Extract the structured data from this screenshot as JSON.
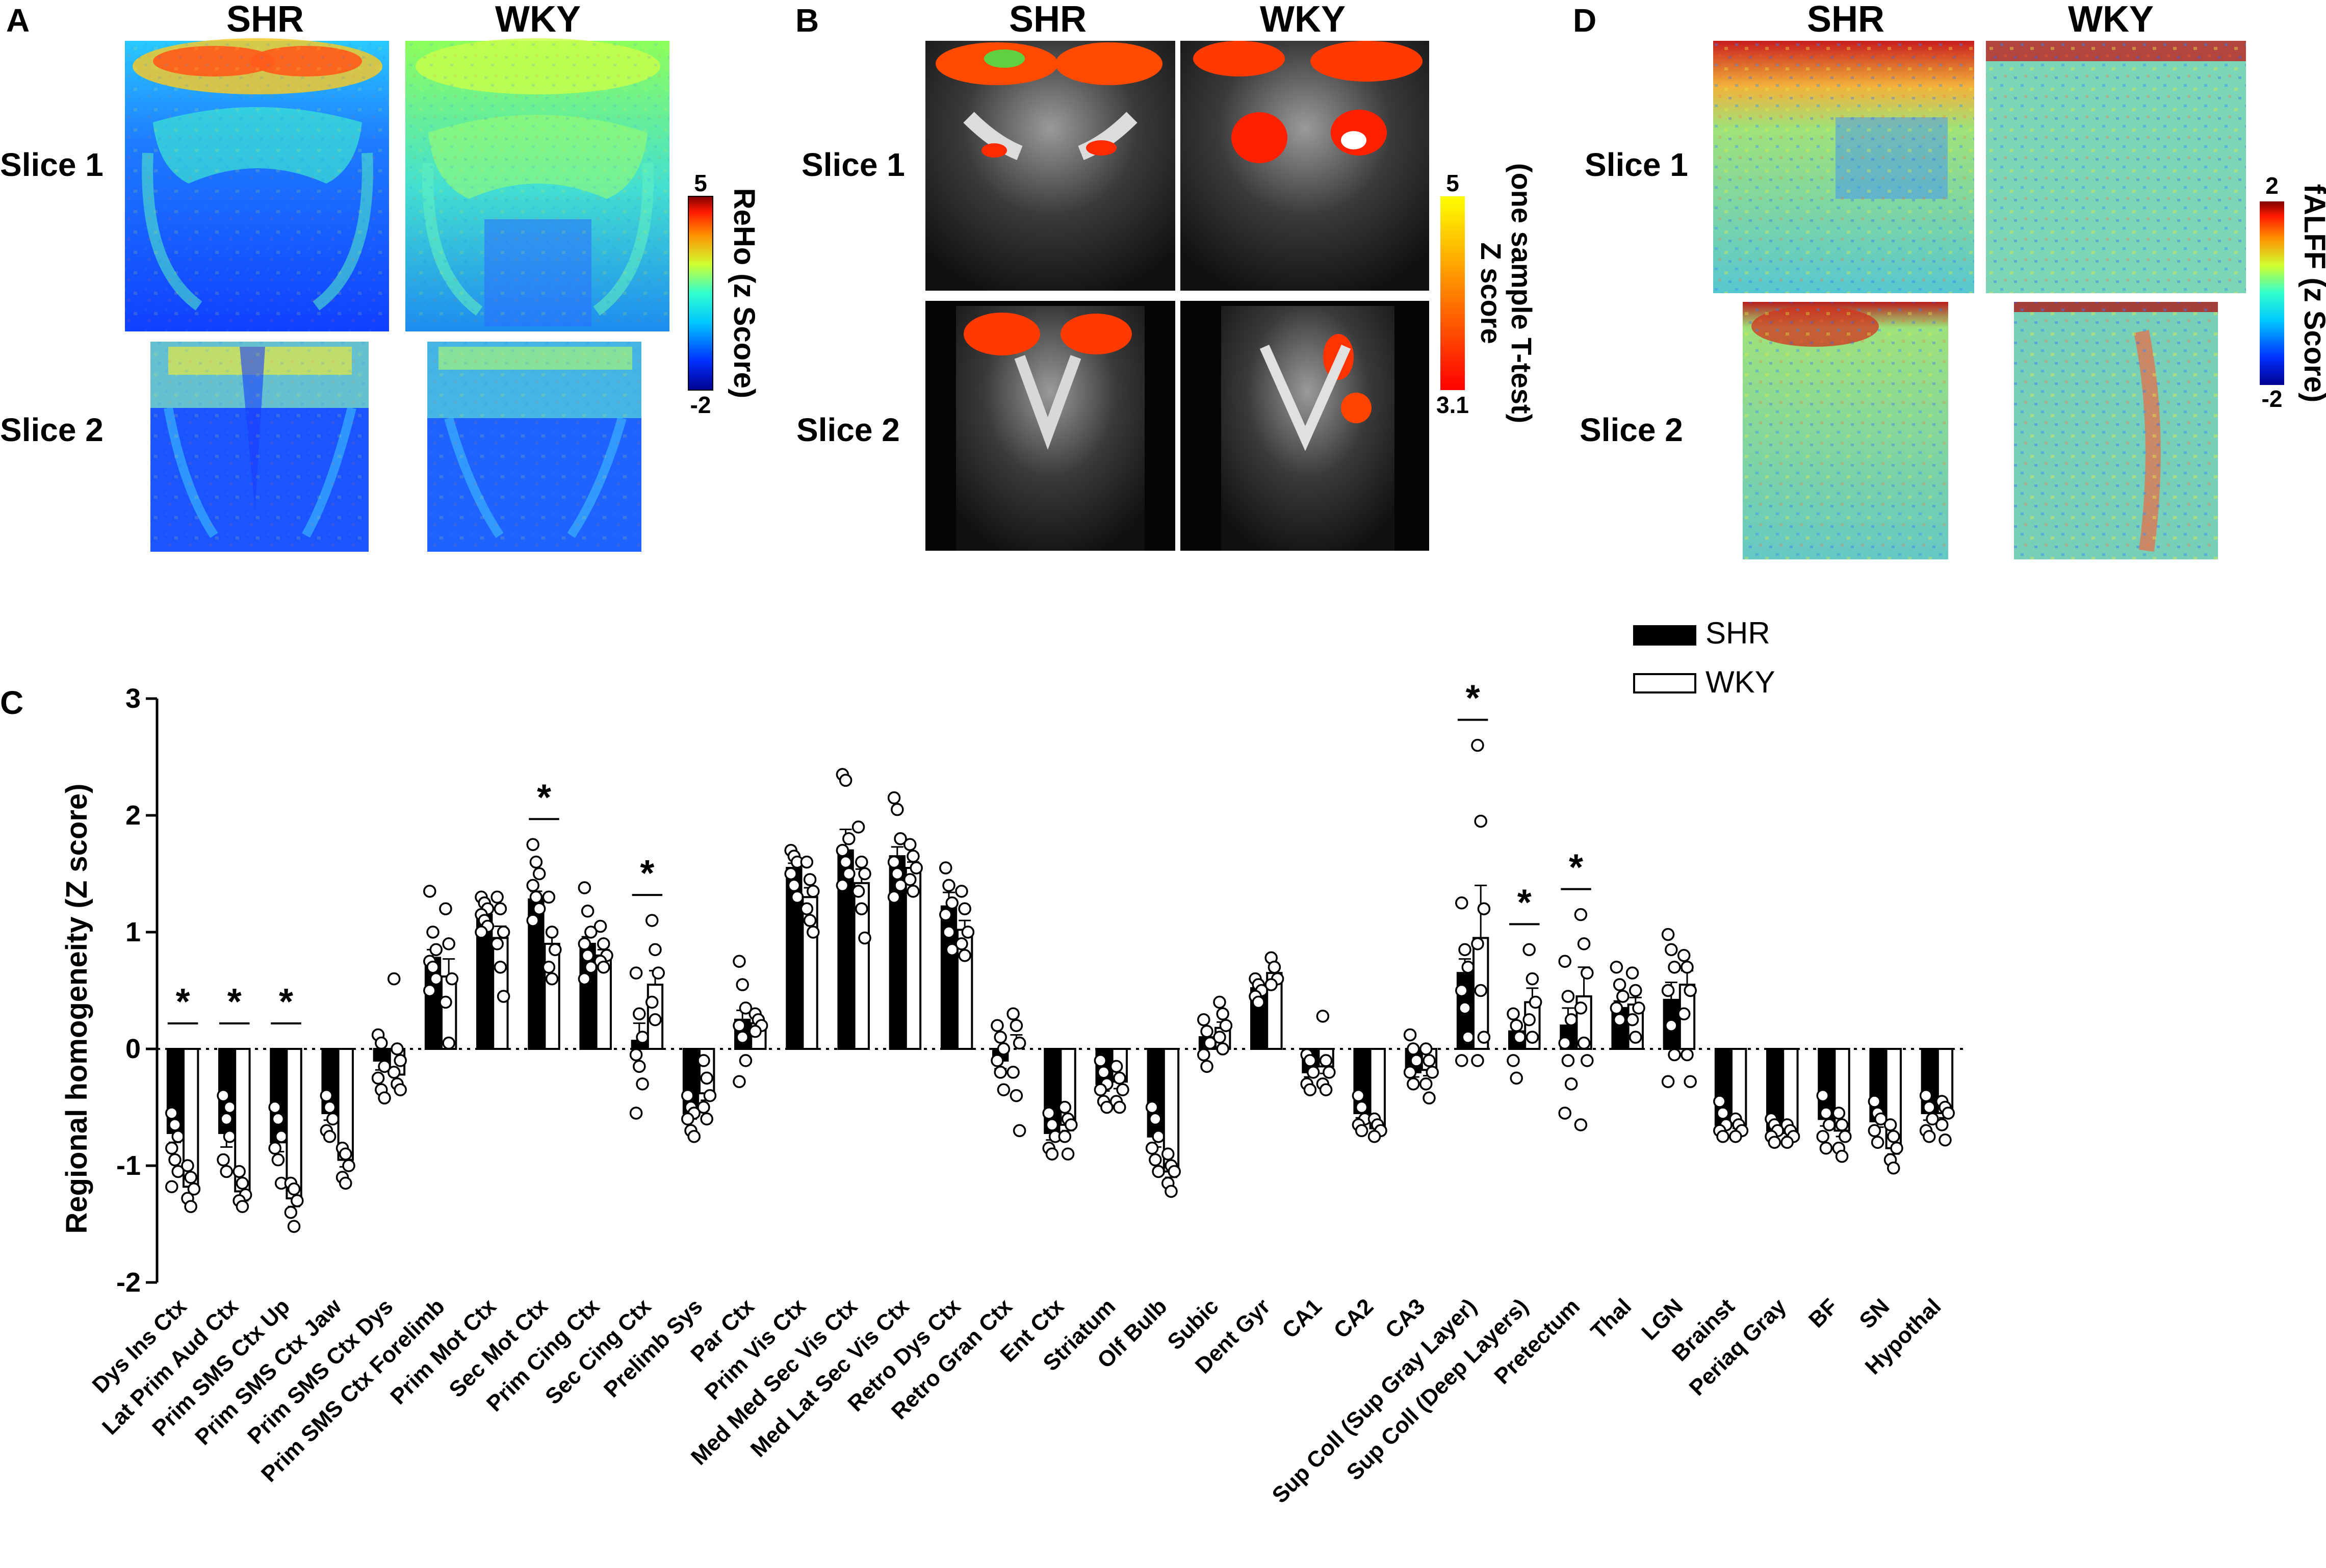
{
  "panels": {
    "A": {
      "letter": "A",
      "col1": "SHR",
      "col2": "WKY",
      "row1": "Slice 1",
      "row2": "Slice 2",
      "colorbar": {
        "title": "ReHo (z Score)",
        "max": "5",
        "min": "-2"
      }
    },
    "B": {
      "letter": "B",
      "col1": "SHR",
      "col2": "WKY",
      "row1": "Slice 1",
      "row2": "Slice 2",
      "colorbar": {
        "title_line1": "Z score",
        "title_line2": "(one sample T-test)",
        "max": "5",
        "min": "3.1"
      }
    },
    "D": {
      "letter": "D",
      "col1": "SHR",
      "col2": "WKY",
      "row1": "Slice 1",
      "row2": "Slice 2",
      "colorbar": {
        "title": "fALFF (z Score)",
        "max": "2",
        "min": "-2"
      }
    },
    "C": {
      "letter": "C"
    }
  },
  "colors": {
    "shr": "#000000",
    "wky": "#ffffff",
    "axis": "#000000"
  },
  "chart_data": {
    "type": "bar",
    "title": "",
    "xlabel": "",
    "ylabel": "Regional homogeneity (Z score)",
    "ylim": [
      -2,
      3
    ],
    "yticks": [
      "-2",
      "-1",
      "0",
      "1",
      "2",
      "3"
    ],
    "legend": [
      {
        "name": "SHR",
        "fill": "#000000"
      },
      {
        "name": "WKY",
        "fill": "#ffffff"
      }
    ],
    "significance_marker": "*",
    "categories": [
      "Dys Ins Ctx",
      "Lat Prim Aud Ctx",
      "Prim SMS Ctx Up",
      "Prim SMS Ctx Jaw",
      "Prim SMS Ctx Dys",
      "Prim SMS Ctx Forelimb",
      "Prim Mot Ctx",
      "Sec Mot Ctx",
      "Prim Cing Ctx",
      "Sec Cing Ctx",
      "Prelimb Sys",
      "Par Ctx",
      "Prim Vis Ctx",
      "Med Med Sec Vis Ctx",
      "Med Lat Sec Vis Ctx",
      "Retro Dys Ctx",
      "Retro Gran Ctx",
      "Ent Ctx",
      "Striatum",
      "Olf Bulb",
      "Subic",
      "Dent Gyr",
      "CA1",
      "CA2",
      "CA3",
      "Sup Coll (Sup Gray Layer)",
      "Sup Coll (Deep Layers)",
      "Pretectum",
      "Thal",
      "LGN",
      "Brainst",
      "Periaq Gray",
      "BF",
      "SN",
      "Hypothal"
    ],
    "series": [
      {
        "name": "SHR",
        "values": [
          -0.72,
          -0.72,
          -0.8,
          -0.55,
          -0.1,
          0.78,
          1.15,
          1.28,
          0.9,
          0.07,
          -0.55,
          0.25,
          1.55,
          1.7,
          1.65,
          1.22,
          -0.1,
          -0.72,
          -0.3,
          -0.75,
          0.1,
          0.52,
          -0.2,
          -0.55,
          -0.2,
          0.65,
          0.15,
          0.2,
          0.35,
          0.42,
          -0.65,
          -0.7,
          -0.6,
          -0.62,
          -0.55
        ],
        "errors": [
          0.08,
          0.12,
          0.08,
          0.06,
          0.08,
          0.07,
          0.04,
          0.07,
          0.06,
          0.15,
          0.05,
          0.08,
          0.04,
          0.18,
          0.08,
          0.12,
          0.07,
          0.06,
          0.06,
          0.09,
          0.06,
          0.03,
          0.04,
          0.04,
          0.04,
          0.12,
          0.07,
          0.15,
          0.06,
          0.15,
          0.04,
          0.03,
          0.06,
          0.05,
          0.06
        ],
        "points": [
          [
            -0.55,
            -0.65,
            -0.75,
            -0.85,
            -0.95,
            -1.05,
            -1.18
          ],
          [
            -0.4,
            -0.6,
            -0.75,
            -0.95,
            -1.05,
            -0.5
          ],
          [
            -0.5,
            -0.6,
            -0.75,
            -0.85,
            -0.95,
            -1.15
          ],
          [
            -0.4,
            -0.5,
            -0.6,
            -0.7,
            -0.75
          ],
          [
            0.12,
            0.05,
            -0.15,
            -0.25,
            -0.35,
            -0.42
          ],
          [
            1.35,
            1.0,
            0.85,
            0.75,
            0.7,
            0.6,
            0.5
          ],
          [
            1.3,
            1.25,
            1.2,
            1.15,
            1.1,
            1.05,
            1.0
          ],
          [
            1.75,
            1.6,
            1.5,
            1.4,
            1.3,
            1.2,
            1.1
          ],
          [
            1.38,
            1.18,
            1.0,
            0.9,
            0.8,
            0.7,
            0.6
          ],
          [
            0.65,
            0.3,
            0.1,
            -0.05,
            -0.15,
            -0.3,
            -0.55
          ],
          [
            -0.4,
            -0.5,
            -0.55,
            -0.6,
            -0.7,
            -0.75
          ],
          [
            0.75,
            0.55,
            0.35,
            0.2,
            0.1,
            -0.1,
            -0.28
          ],
          [
            1.7,
            1.65,
            1.6,
            1.5,
            1.4,
            1.3
          ],
          [
            2.35,
            2.3,
            1.8,
            1.7,
            1.6,
            1.5,
            1.4
          ],
          [
            2.15,
            2.05,
            1.8,
            1.6,
            1.5,
            1.4,
            1.3
          ],
          [
            1.55,
            1.4,
            1.25,
            1.15,
            1.0,
            0.85
          ],
          [
            0.2,
            0.1,
            0.0,
            -0.1,
            -0.2,
            -0.35
          ],
          [
            -0.55,
            -0.65,
            -0.75,
            -0.85,
            -0.9
          ],
          [
            -0.1,
            -0.2,
            -0.3,
            -0.35,
            -0.45,
            -0.5
          ],
          [
            -0.5,
            -0.6,
            -0.75,
            -0.85,
            -0.95,
            -1.05
          ],
          [
            0.25,
            0.15,
            0.05,
            -0.05,
            -0.15
          ],
          [
            0.6,
            0.55,
            0.5,
            0.45,
            0.4
          ],
          [
            -0.05,
            -0.1,
            -0.2,
            -0.3,
            -0.35
          ],
          [
            -0.4,
            -0.5,
            -0.6,
            -0.65,
            -0.7
          ],
          [
            0.12,
            0.0,
            -0.1,
            -0.2,
            -0.3
          ],
          [
            1.25,
            0.85,
            0.7,
            0.5,
            0.35,
            0.1,
            -0.1
          ],
          [
            0.3,
            0.2,
            0.1,
            -0.1,
            -0.25
          ],
          [
            0.75,
            0.45,
            0.25,
            0.05,
            -0.1,
            -0.3,
            -0.55
          ],
          [
            0.7,
            0.55,
            0.45,
            0.35,
            0.25
          ],
          [
            0.98,
            0.85,
            0.7,
            0.5,
            0.2,
            -0.05,
            -0.28
          ],
          [
            -0.45,
            -0.55,
            -0.65,
            -0.7,
            -0.75
          ],
          [
            -0.6,
            -0.65,
            -0.7,
            -0.75,
            -0.8
          ],
          [
            -0.4,
            -0.55,
            -0.65,
            -0.75,
            -0.85
          ],
          [
            -0.45,
            -0.55,
            -0.6,
            -0.7,
            -0.8
          ],
          [
            -0.4,
            -0.5,
            -0.6,
            -0.7,
            -0.75
          ]
        ]
      },
      {
        "name": "WKY",
        "values": [
          -1.18,
          -1.22,
          -1.28,
          -0.95,
          -0.22,
          0.62,
          0.95,
          0.9,
          0.8,
          0.55,
          -0.38,
          0.22,
          1.3,
          1.42,
          1.55,
          1.02,
          0.0,
          -0.65,
          -0.28,
          -1.05,
          0.18,
          0.65,
          -0.15,
          -0.68,
          -0.18,
          0.95,
          0.4,
          0.45,
          0.38,
          0.55,
          -0.65,
          -0.72,
          -0.7,
          -0.85,
          -0.55
        ],
        "errors": [
          0.06,
          0.08,
          0.07,
          0.06,
          0.1,
          0.15,
          0.1,
          0.12,
          0.05,
          0.12,
          0.06,
          0.04,
          0.08,
          0.12,
          0.05,
          0.08,
          0.12,
          0.05,
          0.06,
          0.05,
          0.05,
          0.04,
          0.06,
          0.04,
          0.05,
          0.45,
          0.12,
          0.25,
          0.06,
          0.12,
          0.03,
          0.03,
          0.05,
          0.05,
          0.04
        ],
        "points": [
          [
            -1.0,
            -1.1,
            -1.2,
            -1.28,
            -1.35
          ],
          [
            -1.05,
            -1.15,
            -1.25,
            -1.3,
            -1.35
          ],
          [
            -1.15,
            -1.2,
            -1.3,
            -1.4,
            -1.52
          ],
          [
            -0.85,
            -0.9,
            -1.0,
            -1.1,
            -1.15
          ],
          [
            0.6,
            0.0,
            -0.1,
            -0.2,
            -0.3,
            -0.35
          ],
          [
            1.2,
            0.9,
            0.6,
            0.4,
            0.05
          ],
          [
            1.3,
            1.2,
            1.0,
            0.9,
            0.7,
            0.45
          ],
          [
            1.3,
            1.0,
            0.85,
            0.7,
            0.6
          ],
          [
            1.05,
            0.9,
            0.8,
            0.75,
            0.7
          ],
          [
            1.1,
            0.85,
            0.65,
            0.4,
            0.25
          ],
          [
            -0.1,
            -0.25,
            -0.4,
            -0.5,
            -0.6
          ],
          [
            0.3,
            0.25,
            0.2,
            0.15
          ],
          [
            1.6,
            1.45,
            1.35,
            1.2,
            1.1,
            1.0
          ],
          [
            1.9,
            1.6,
            1.5,
            1.35,
            1.2,
            0.95
          ],
          [
            1.75,
            1.65,
            1.55,
            1.45,
            1.35
          ],
          [
            1.35,
            1.2,
            1.0,
            0.9,
            0.8
          ],
          [
            0.3,
            0.2,
            0.05,
            -0.2,
            -0.4,
            -0.7
          ],
          [
            -0.5,
            -0.6,
            -0.65,
            -0.75,
            -0.9
          ],
          [
            -0.15,
            -0.25,
            -0.35,
            -0.45,
            -0.5
          ],
          [
            -0.9,
            -1.0,
            -1.05,
            -1.15,
            -1.22
          ],
          [
            0.4,
            0.3,
            0.2,
            0.1,
            0.0
          ],
          [
            0.78,
            0.7,
            0.6,
            0.55
          ],
          [
            0.28,
            -0.1,
            -0.2,
            -0.3,
            -0.35
          ],
          [
            -0.6,
            -0.65,
            -0.7,
            -0.75
          ],
          [
            0.0,
            -0.1,
            -0.2,
            -0.3,
            -0.42
          ],
          [
            2.6,
            1.95,
            1.2,
            0.9,
            0.5,
            0.1,
            -0.1
          ],
          [
            0.85,
            0.6,
            0.4,
            0.25,
            0.1
          ],
          [
            1.15,
            0.9,
            0.65,
            0.35,
            0.05,
            -0.1,
            -0.65
          ],
          [
            0.65,
            0.5,
            0.35,
            0.25,
            0.1
          ],
          [
            0.8,
            0.7,
            0.5,
            0.3,
            -0.05,
            -0.28
          ],
          [
            -0.6,
            -0.65,
            -0.7,
            -0.75
          ],
          [
            -0.65,
            -0.7,
            -0.75,
            -0.8
          ],
          [
            -0.55,
            -0.65,
            -0.75,
            -0.85,
            -0.92
          ],
          [
            -0.65,
            -0.75,
            -0.85,
            -0.95,
            -1.02
          ],
          [
            -0.45,
            -0.5,
            -0.55,
            -0.65,
            -0.78
          ]
        ]
      }
    ],
    "significant_categories": [
      0,
      1,
      2,
      7,
      9,
      25,
      26,
      27
    ]
  }
}
